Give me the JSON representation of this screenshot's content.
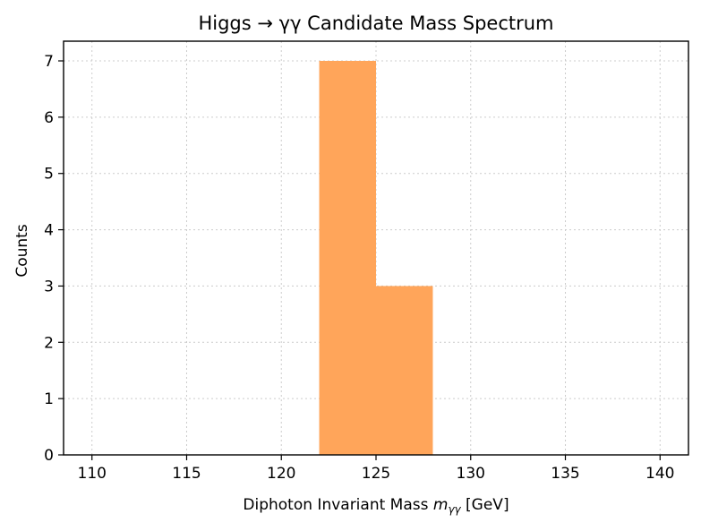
{
  "chart_data": {
    "type": "bar",
    "title": "Higgs → γγ Candidate Mass Spectrum",
    "xlabel": {
      "prefix": "Diphoton Invariant Mass ",
      "symbol": "m",
      "subscript": "γγ",
      "suffix": " [GeV]"
    },
    "ylabel": "Counts",
    "xlim": [
      108.5,
      141.5
    ],
    "ylim": [
      0,
      7.35
    ],
    "xticks": [
      110,
      115,
      120,
      125,
      130,
      135,
      140
    ],
    "yticks": [
      0,
      1,
      2,
      3,
      4,
      5,
      6,
      7
    ],
    "grid": true,
    "bins": [
      {
        "x0": 122,
        "x1": 125,
        "count": 7
      },
      {
        "x0": 125,
        "x1": 128,
        "count": 3
      }
    ],
    "bar_color": "#FFA55A"
  }
}
